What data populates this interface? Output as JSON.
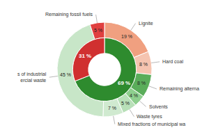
{
  "chart_data": [
    {
      "type": "pie",
      "categories": [
        "Lignite",
        "Hard coal",
        "Remaining alterna",
        "Solvents",
        "Waste tyres",
        "Mixed fractions of municipal wa",
        "s of industrial\nercial waste",
        "Remaining fossil fuels"
      ],
      "values": [
        19,
        8,
        8,
        4,
        5,
        7,
        45,
        5
      ],
      "value_labels": [
        "19 %",
        "8 %",
        "8 %",
        "4 %",
        "5 %",
        "7 %",
        "45 %",
        "5 %"
      ],
      "colors": [
        "#f0a080",
        "#f5c4b0",
        "#5aad5a",
        "#8ecf8e",
        "#b8e0b8",
        "#d0ead0",
        "#c8e6c8",
        "#e04040"
      ]
    },
    {
      "type": "pie",
      "values": [
        69,
        31
      ],
      "value_labels": [
        "69 %",
        "31 %"
      ],
      "colors": [
        "#2e8b2e",
        "#d03030"
      ]
    }
  ]
}
